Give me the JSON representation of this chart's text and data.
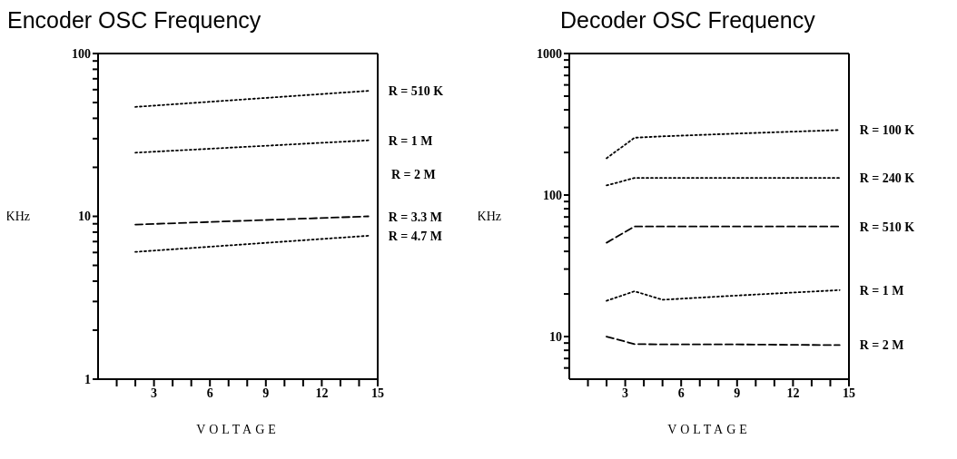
{
  "chart_data": [
    {
      "type": "line",
      "title": "Encoder OSC Frequency",
      "xlabel": "VOLTAGE",
      "ylabel": "KHz",
      "log": "y",
      "grid": false,
      "legend": false,
      "marker": "none",
      "xlim": [
        0,
        15
      ],
      "ylim": [
        1,
        100
      ],
      "xticks": [
        {
          "value": 1,
          "label": null
        },
        {
          "value": 2,
          "label": null
        },
        3,
        {
          "value": 4,
          "label": null
        },
        {
          "value": 5,
          "label": null
        },
        6,
        {
          "value": 7,
          "label": null
        },
        {
          "value": 8,
          "label": null
        },
        9,
        {
          "value": 10,
          "label": null
        },
        {
          "value": 11,
          "label": null
        },
        12,
        {
          "value": 13,
          "label": null
        },
        {
          "value": 14,
          "label": null
        },
        15
      ],
      "yticks": [
        1,
        {
          "value": 2,
          "label": null
        },
        {
          "value": 3,
          "label": null
        },
        {
          "value": 4,
          "label": null
        },
        {
          "value": 5,
          "label": null
        },
        {
          "value": 6,
          "label": null
        },
        {
          "value": 7,
          "label": null
        },
        {
          "value": 8,
          "label": null
        },
        {
          "value": 9,
          "label": null
        },
        10,
        {
          "value": 20,
          "label": null
        },
        {
          "value": 30,
          "label": null
        },
        {
          "value": 40,
          "label": null
        },
        {
          "value": 50,
          "label": null
        },
        {
          "value": 60,
          "label": null
        },
        {
          "value": 70,
          "label": null
        },
        {
          "value": 80,
          "label": null
        },
        {
          "value": 90,
          "label": null
        },
        100
      ],
      "x": [
        2,
        14.5
      ],
      "series": [
        {
          "name": "R = 510 K",
          "color": "#000000",
          "line_style": "dotted",
          "values": [
            47,
            59
          ]
        },
        {
          "name": "R = 1 M",
          "color": "#000000",
          "line_style": "dotted",
          "values": [
            24.6,
            29.3
          ]
        },
        {
          "name": "R = 3.3 M",
          "color": "#000000",
          "line_style": "dashed",
          "values": [
            8.9,
            10
          ]
        },
        {
          "name": "R = 4.7 M",
          "color": "#000000",
          "line_style": "dotted",
          "values": [
            6.05,
            7.6
          ]
        }
      ],
      "annotations": [
        "R = 2 M"
      ]
    },
    {
      "type": "line",
      "title": "Decoder OSC Frequency",
      "xlabel": "VOLTAGE",
      "ylabel": "KHz",
      "log": "y",
      "grid": false,
      "legend": false,
      "marker": "none",
      "xlim": [
        0,
        15
      ],
      "ylim": [
        5,
        1000
      ],
      "xticks": [
        {
          "value": 1,
          "label": null
        },
        {
          "value": 2,
          "label": null
        },
        3,
        {
          "value": 4,
          "label": null
        },
        {
          "value": 5,
          "label": null
        },
        6,
        {
          "value": 7,
          "label": null
        },
        {
          "value": 8,
          "label": null
        },
        9,
        {
          "value": 10,
          "label": null
        },
        {
          "value": 11,
          "label": null
        },
        12,
        {
          "value": 13,
          "label": null
        },
        {
          "value": 14,
          "label": null
        },
        15
      ],
      "yticks": [
        {
          "value": 6,
          "label": null
        },
        {
          "value": 7,
          "label": null
        },
        {
          "value": 8,
          "label": null
        },
        {
          "value": 9,
          "label": null
        },
        10,
        {
          "value": 20,
          "label": null
        },
        {
          "value": 30,
          "label": null
        },
        {
          "value": 40,
          "label": null
        },
        {
          "value": 50,
          "label": null
        },
        {
          "value": 60,
          "label": null
        },
        {
          "value": 70,
          "label": null
        },
        {
          "value": 80,
          "label": null
        },
        {
          "value": 90,
          "label": null
        },
        100,
        {
          "value": 200,
          "label": null
        },
        {
          "value": 300,
          "label": null
        },
        {
          "value": 400,
          "label": null
        },
        {
          "value": 500,
          "label": null
        },
        {
          "value": 600,
          "label": null
        },
        {
          "value": 700,
          "label": null
        },
        {
          "value": 800,
          "label": null
        },
        {
          "value": 900,
          "label": null
        },
        1000
      ],
      "x": [
        2,
        3.5,
        5,
        9,
        14.5
      ],
      "series": [
        {
          "name": "R = 100 K",
          "color": "#000000",
          "line_style": "dotted",
          "values": [
            182,
            254,
            260,
            272,
            288
          ]
        },
        {
          "name": "R = 240 K",
          "color": "#000000",
          "line_style": "dotted",
          "values": [
            117,
            132,
            132,
            132,
            132
          ]
        },
        {
          "name": "R = 510 K",
          "color": "#000000",
          "line_style": "dashed",
          "values": [
            46,
            60,
            60,
            60,
            60
          ]
        },
        {
          "name": "R = 1 M",
          "color": "#000000",
          "line_style": "dotted",
          "values": [
            17.9,
            20.9,
            18.2,
            19.5,
            21.3
          ]
        },
        {
          "name": "R = 2 M",
          "color": "#000000",
          "line_style": "dashed",
          "values": [
            10,
            8.85,
            8.8,
            8.8,
            8.7
          ]
        }
      ]
    }
  ]
}
